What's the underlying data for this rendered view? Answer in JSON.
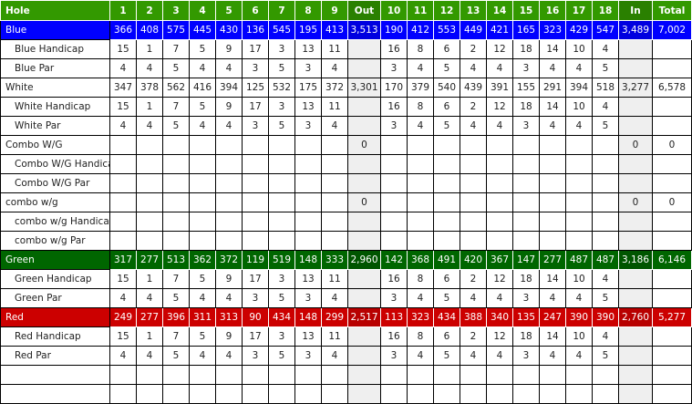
{
  "colors": {
    "header": "#339900",
    "header_sum": "#2a8000",
    "blue": "#0000ff",
    "blue_sum": "#0000e0",
    "green": "#006600",
    "green_sum": "#005500",
    "red": "#cc0000",
    "red_sum": "#b80000",
    "sum_gray": "#efefef"
  },
  "header": [
    "Hole",
    "1",
    "2",
    "3",
    "4",
    "5",
    "6",
    "7",
    "8",
    "9",
    "Out",
    "10",
    "11",
    "12",
    "13",
    "14",
    "15",
    "16",
    "17",
    "18",
    "In",
    "Total"
  ],
  "rows": [
    {
      "label": "Blue",
      "kind": "tee",
      "color": "blue",
      "front": [
        "366",
        "408",
        "575",
        "445",
        "430",
        "136",
        "545",
        "195",
        "413"
      ],
      "out": "3,513",
      "back": [
        "190",
        "412",
        "553",
        "449",
        "421",
        "165",
        "323",
        "429",
        "547"
      ],
      "in": "3,489",
      "total": "7,002"
    },
    {
      "label": "Blue Handicap",
      "kind": "sub",
      "front": [
        "15",
        "1",
        "7",
        "5",
        "9",
        "17",
        "3",
        "13",
        "11"
      ],
      "out": "",
      "back": [
        "16",
        "8",
        "6",
        "2",
        "12",
        "18",
        "14",
        "10",
        "4"
      ],
      "in": "",
      "total": ""
    },
    {
      "label": "Blue Par",
      "kind": "sub",
      "front": [
        "4",
        "4",
        "5",
        "4",
        "4",
        "3",
        "5",
        "3",
        "4"
      ],
      "out": "",
      "back": [
        "3",
        "4",
        "5",
        "4",
        "4",
        "3",
        "4",
        "4",
        "5"
      ],
      "in": "",
      "total": ""
    },
    {
      "label": "White",
      "kind": "tee",
      "front": [
        "347",
        "378",
        "562",
        "416",
        "394",
        "125",
        "532",
        "175",
        "372"
      ],
      "out": "3,301",
      "back": [
        "170",
        "379",
        "540",
        "439",
        "391",
        "155",
        "291",
        "394",
        "518"
      ],
      "in": "3,277",
      "total": "6,578"
    },
    {
      "label": "White Handicap",
      "kind": "sub",
      "front": [
        "15",
        "1",
        "7",
        "5",
        "9",
        "17",
        "3",
        "13",
        "11"
      ],
      "out": "",
      "back": [
        "16",
        "8",
        "6",
        "2",
        "12",
        "18",
        "14",
        "10",
        "4"
      ],
      "in": "",
      "total": ""
    },
    {
      "label": "White Par",
      "kind": "sub",
      "front": [
        "4",
        "4",
        "5",
        "4",
        "4",
        "3",
        "5",
        "3",
        "4"
      ],
      "out": "",
      "back": [
        "3",
        "4",
        "5",
        "4",
        "4",
        "3",
        "4",
        "4",
        "5"
      ],
      "in": "",
      "total": ""
    },
    {
      "label": "Combo W/G",
      "kind": "tee",
      "front": [
        "",
        "",
        "",
        "",
        "",
        "",
        "",
        "",
        ""
      ],
      "out": "0",
      "back": [
        "",
        "",
        "",
        "",
        "",
        "",
        "",
        "",
        ""
      ],
      "in": "0",
      "total": "0"
    },
    {
      "label": "Combo W/G Handicap",
      "kind": "sub",
      "front": [
        "",
        "",
        "",
        "",
        "",
        "",
        "",
        "",
        ""
      ],
      "out": "",
      "back": [
        "",
        "",
        "",
        "",
        "",
        "",
        "",
        "",
        ""
      ],
      "in": "",
      "total": ""
    },
    {
      "label": "Combo W/G Par",
      "kind": "sub",
      "front": [
        "",
        "",
        "",
        "",
        "",
        "",
        "",
        "",
        ""
      ],
      "out": "",
      "back": [
        "",
        "",
        "",
        "",
        "",
        "",
        "",
        "",
        ""
      ],
      "in": "",
      "total": ""
    },
    {
      "label": "combo w/g",
      "kind": "tee",
      "front": [
        "",
        "",
        "",
        "",
        "",
        "",
        "",
        "",
        ""
      ],
      "out": "0",
      "back": [
        "",
        "",
        "",
        "",
        "",
        "",
        "",
        "",
        ""
      ],
      "in": "0",
      "total": "0"
    },
    {
      "label": "combo w/g Handicap",
      "kind": "sub",
      "front": [
        "",
        "",
        "",
        "",
        "",
        "",
        "",
        "",
        ""
      ],
      "out": "",
      "back": [
        "",
        "",
        "",
        "",
        "",
        "",
        "",
        "",
        ""
      ],
      "in": "",
      "total": ""
    },
    {
      "label": "combo w/g Par",
      "kind": "sub",
      "front": [
        "",
        "",
        "",
        "",
        "",
        "",
        "",
        "",
        ""
      ],
      "out": "",
      "back": [
        "",
        "",
        "",
        "",
        "",
        "",
        "",
        "",
        ""
      ],
      "in": "",
      "total": ""
    },
    {
      "label": "Green",
      "kind": "tee",
      "color": "green",
      "front": [
        "317",
        "277",
        "513",
        "362",
        "372",
        "119",
        "519",
        "148",
        "333"
      ],
      "out": "2,960",
      "back": [
        "142",
        "368",
        "491",
        "420",
        "367",
        "147",
        "277",
        "487",
        "487"
      ],
      "in": "3,186",
      "total": "6,146"
    },
    {
      "label": "Green Handicap",
      "kind": "sub",
      "front": [
        "15",
        "1",
        "7",
        "5",
        "9",
        "17",
        "3",
        "13",
        "11"
      ],
      "out": "",
      "back": [
        "16",
        "8",
        "6",
        "2",
        "12",
        "18",
        "14",
        "10",
        "4"
      ],
      "in": "",
      "total": ""
    },
    {
      "label": "Green Par",
      "kind": "sub",
      "front": [
        "4",
        "4",
        "5",
        "4",
        "4",
        "3",
        "5",
        "3",
        "4"
      ],
      "out": "",
      "back": [
        "3",
        "4",
        "5",
        "4",
        "4",
        "3",
        "4",
        "4",
        "5"
      ],
      "in": "",
      "total": ""
    },
    {
      "label": "Red",
      "kind": "tee",
      "color": "red",
      "front": [
        "249",
        "277",
        "396",
        "311",
        "313",
        "90",
        "434",
        "148",
        "299"
      ],
      "out": "2,517",
      "back": [
        "113",
        "323",
        "434",
        "388",
        "340",
        "135",
        "247",
        "390",
        "390"
      ],
      "in": "2,760",
      "total": "5,277"
    },
    {
      "label": "Red Handicap",
      "kind": "sub",
      "front": [
        "15",
        "1",
        "7",
        "5",
        "9",
        "17",
        "3",
        "13",
        "11"
      ],
      "out": "",
      "back": [
        "16",
        "8",
        "6",
        "2",
        "12",
        "18",
        "14",
        "10",
        "4"
      ],
      "in": "",
      "total": ""
    },
    {
      "label": "Red Par",
      "kind": "sub",
      "front": [
        "4",
        "4",
        "5",
        "4",
        "4",
        "3",
        "5",
        "3",
        "4"
      ],
      "out": "",
      "back": [
        "3",
        "4",
        "5",
        "4",
        "4",
        "3",
        "4",
        "4",
        "5"
      ],
      "in": "",
      "total": ""
    },
    {
      "label": "",
      "kind": "blank",
      "front": [
        "",
        "",
        "",
        "",
        "",
        "",
        "",
        "",
        ""
      ],
      "out": "",
      "back": [
        "",
        "",
        "",
        "",
        "",
        "",
        "",
        "",
        ""
      ],
      "in": "",
      "total": ""
    },
    {
      "label": "",
      "kind": "blank",
      "front": [
        "",
        "",
        "",
        "",
        "",
        "",
        "",
        "",
        ""
      ],
      "out": "",
      "back": [
        "",
        "",
        "",
        "",
        "",
        "",
        "",
        "",
        ""
      ],
      "in": "",
      "total": ""
    }
  ]
}
